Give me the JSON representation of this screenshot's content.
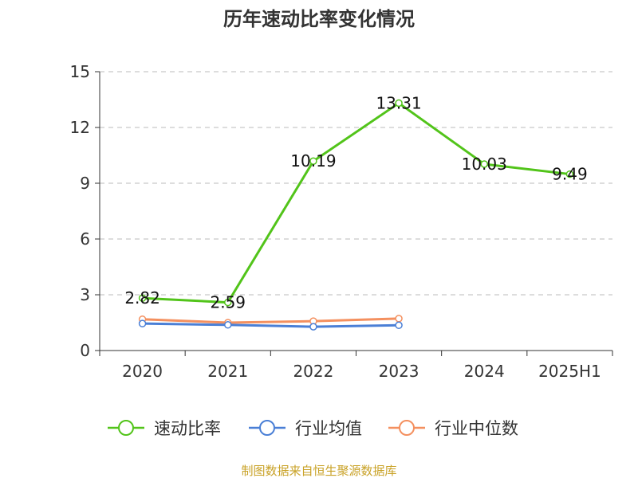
{
  "chart_data": {
    "type": "line",
    "title": "历年速动比率变化情况",
    "categories": [
      "2020",
      "2021",
      "2022",
      "2023",
      "2024",
      "2025H1"
    ],
    "ylim": [
      0,
      15
    ],
    "yticks": [
      "0",
      "3",
      "6",
      "9",
      "12",
      "15"
    ],
    "grid": true,
    "legend_position": "bottom",
    "series": [
      {
        "name": "速动比率",
        "color": "#52c41a",
        "values": [
          2.82,
          2.59,
          10.19,
          13.31,
          10.03,
          9.49
        ],
        "labels": [
          "2.82",
          "2.59",
          "10.19",
          "13.31",
          "10.03",
          "9.49"
        ]
      },
      {
        "name": "行业均值",
        "color": "#4a7fd6",
        "values": [
          1.45,
          1.38,
          1.28,
          1.36,
          null,
          null
        ]
      },
      {
        "name": "行业中位数",
        "color": "#f4905f",
        "values": [
          1.68,
          1.5,
          1.58,
          1.72,
          null,
          null
        ]
      }
    ]
  },
  "source_text": "制图数据来自恒生聚源数据库",
  "source_color": "#c9a227"
}
